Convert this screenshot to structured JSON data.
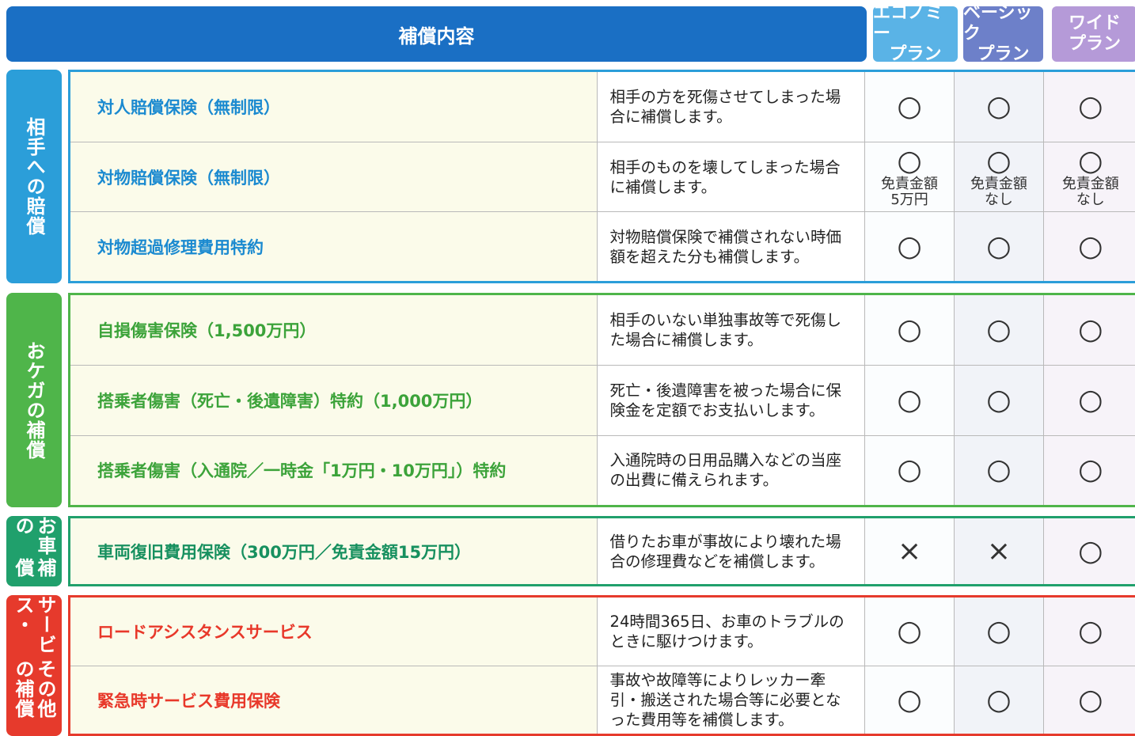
{
  "header": {
    "title": "補償内容",
    "plans": [
      [
        "エコノミー",
        "プラン"
      ],
      [
        "ベーシック",
        "プラン"
      ],
      [
        "ワイド",
        "プラン"
      ]
    ]
  },
  "groups": [
    {
      "label": [
        "相手への賠償"
      ],
      "rows": [
        {
          "name": "対人賠償保険（無制限）",
          "description": "相手の方を死傷させてしまった場合に補償します。",
          "plans": [
            {
              "mark": "○"
            },
            {
              "mark": "○"
            },
            {
              "mark": "○"
            }
          ]
        },
        {
          "name": "対物賠償保険（無制限）",
          "description": "相手のものを壊してしまった場合に補償します。",
          "plans": [
            {
              "mark": "○",
              "note": [
                "免責金額",
                "5万円"
              ]
            },
            {
              "mark": "○",
              "note": [
                "免責金額",
                "なし"
              ]
            },
            {
              "mark": "○",
              "note": [
                "免責金額",
                "なし"
              ]
            }
          ]
        },
        {
          "name": "対物超過修理費用特約",
          "description": "対物賠償保険で補償されない時価額を超えた分も補償します。",
          "plans": [
            {
              "mark": "○"
            },
            {
              "mark": "○"
            },
            {
              "mark": "○"
            }
          ]
        }
      ]
    },
    {
      "label": [
        "おケガの補償"
      ],
      "rows": [
        {
          "name": "自損傷害保険（1,500万円）",
          "description": "相手のいない単独事故等で死傷した場合に補償します。",
          "plans": [
            {
              "mark": "○"
            },
            {
              "mark": "○"
            },
            {
              "mark": "○"
            }
          ]
        },
        {
          "name": "搭乗者傷害（死亡・後遺障害）特約（1,000万円）",
          "description": "死亡・後遺障害を被った場合に保険金を定額でお支払いします。",
          "plans": [
            {
              "mark": "○"
            },
            {
              "mark": "○"
            },
            {
              "mark": "○"
            }
          ]
        },
        {
          "name": "搭乗者傷害（入通院／一時金「1万円・10万円」）特約",
          "description": "入通院時の日用品購入などの当座の出費に備えられます。",
          "plans": [
            {
              "mark": "○"
            },
            {
              "mark": "○"
            },
            {
              "mark": "○"
            }
          ]
        }
      ]
    },
    {
      "label": [
        "お車の",
        "補償"
      ],
      "rows": [
        {
          "name": "車両復旧費用保険（300万円／免責金額15万円）",
          "description": "借りたお車が事故により壊れた場合の修理費などを補償します。",
          "plans": [
            {
              "mark": "×"
            },
            {
              "mark": "×"
            },
            {
              "mark": "○"
            }
          ]
        }
      ]
    },
    {
      "label": [
        "サービス・",
        "その他の補償"
      ],
      "rows": [
        {
          "name": "ロードアシスタンスサービス",
          "description": "24時間365日、お車のトラブルのときに駆けつけます。",
          "plans": [
            {
              "mark": "○"
            },
            {
              "mark": "○"
            },
            {
              "mark": "○"
            }
          ]
        },
        {
          "name": "緊急時サービス費用保険",
          "description": "事故や故障等によりレッカー牽引・搬送された場合等に必要となった費用等を補償します。",
          "plans": [
            {
              "mark": "○"
            },
            {
              "mark": "○"
            },
            {
              "mark": "○"
            }
          ]
        }
      ]
    }
  ]
}
